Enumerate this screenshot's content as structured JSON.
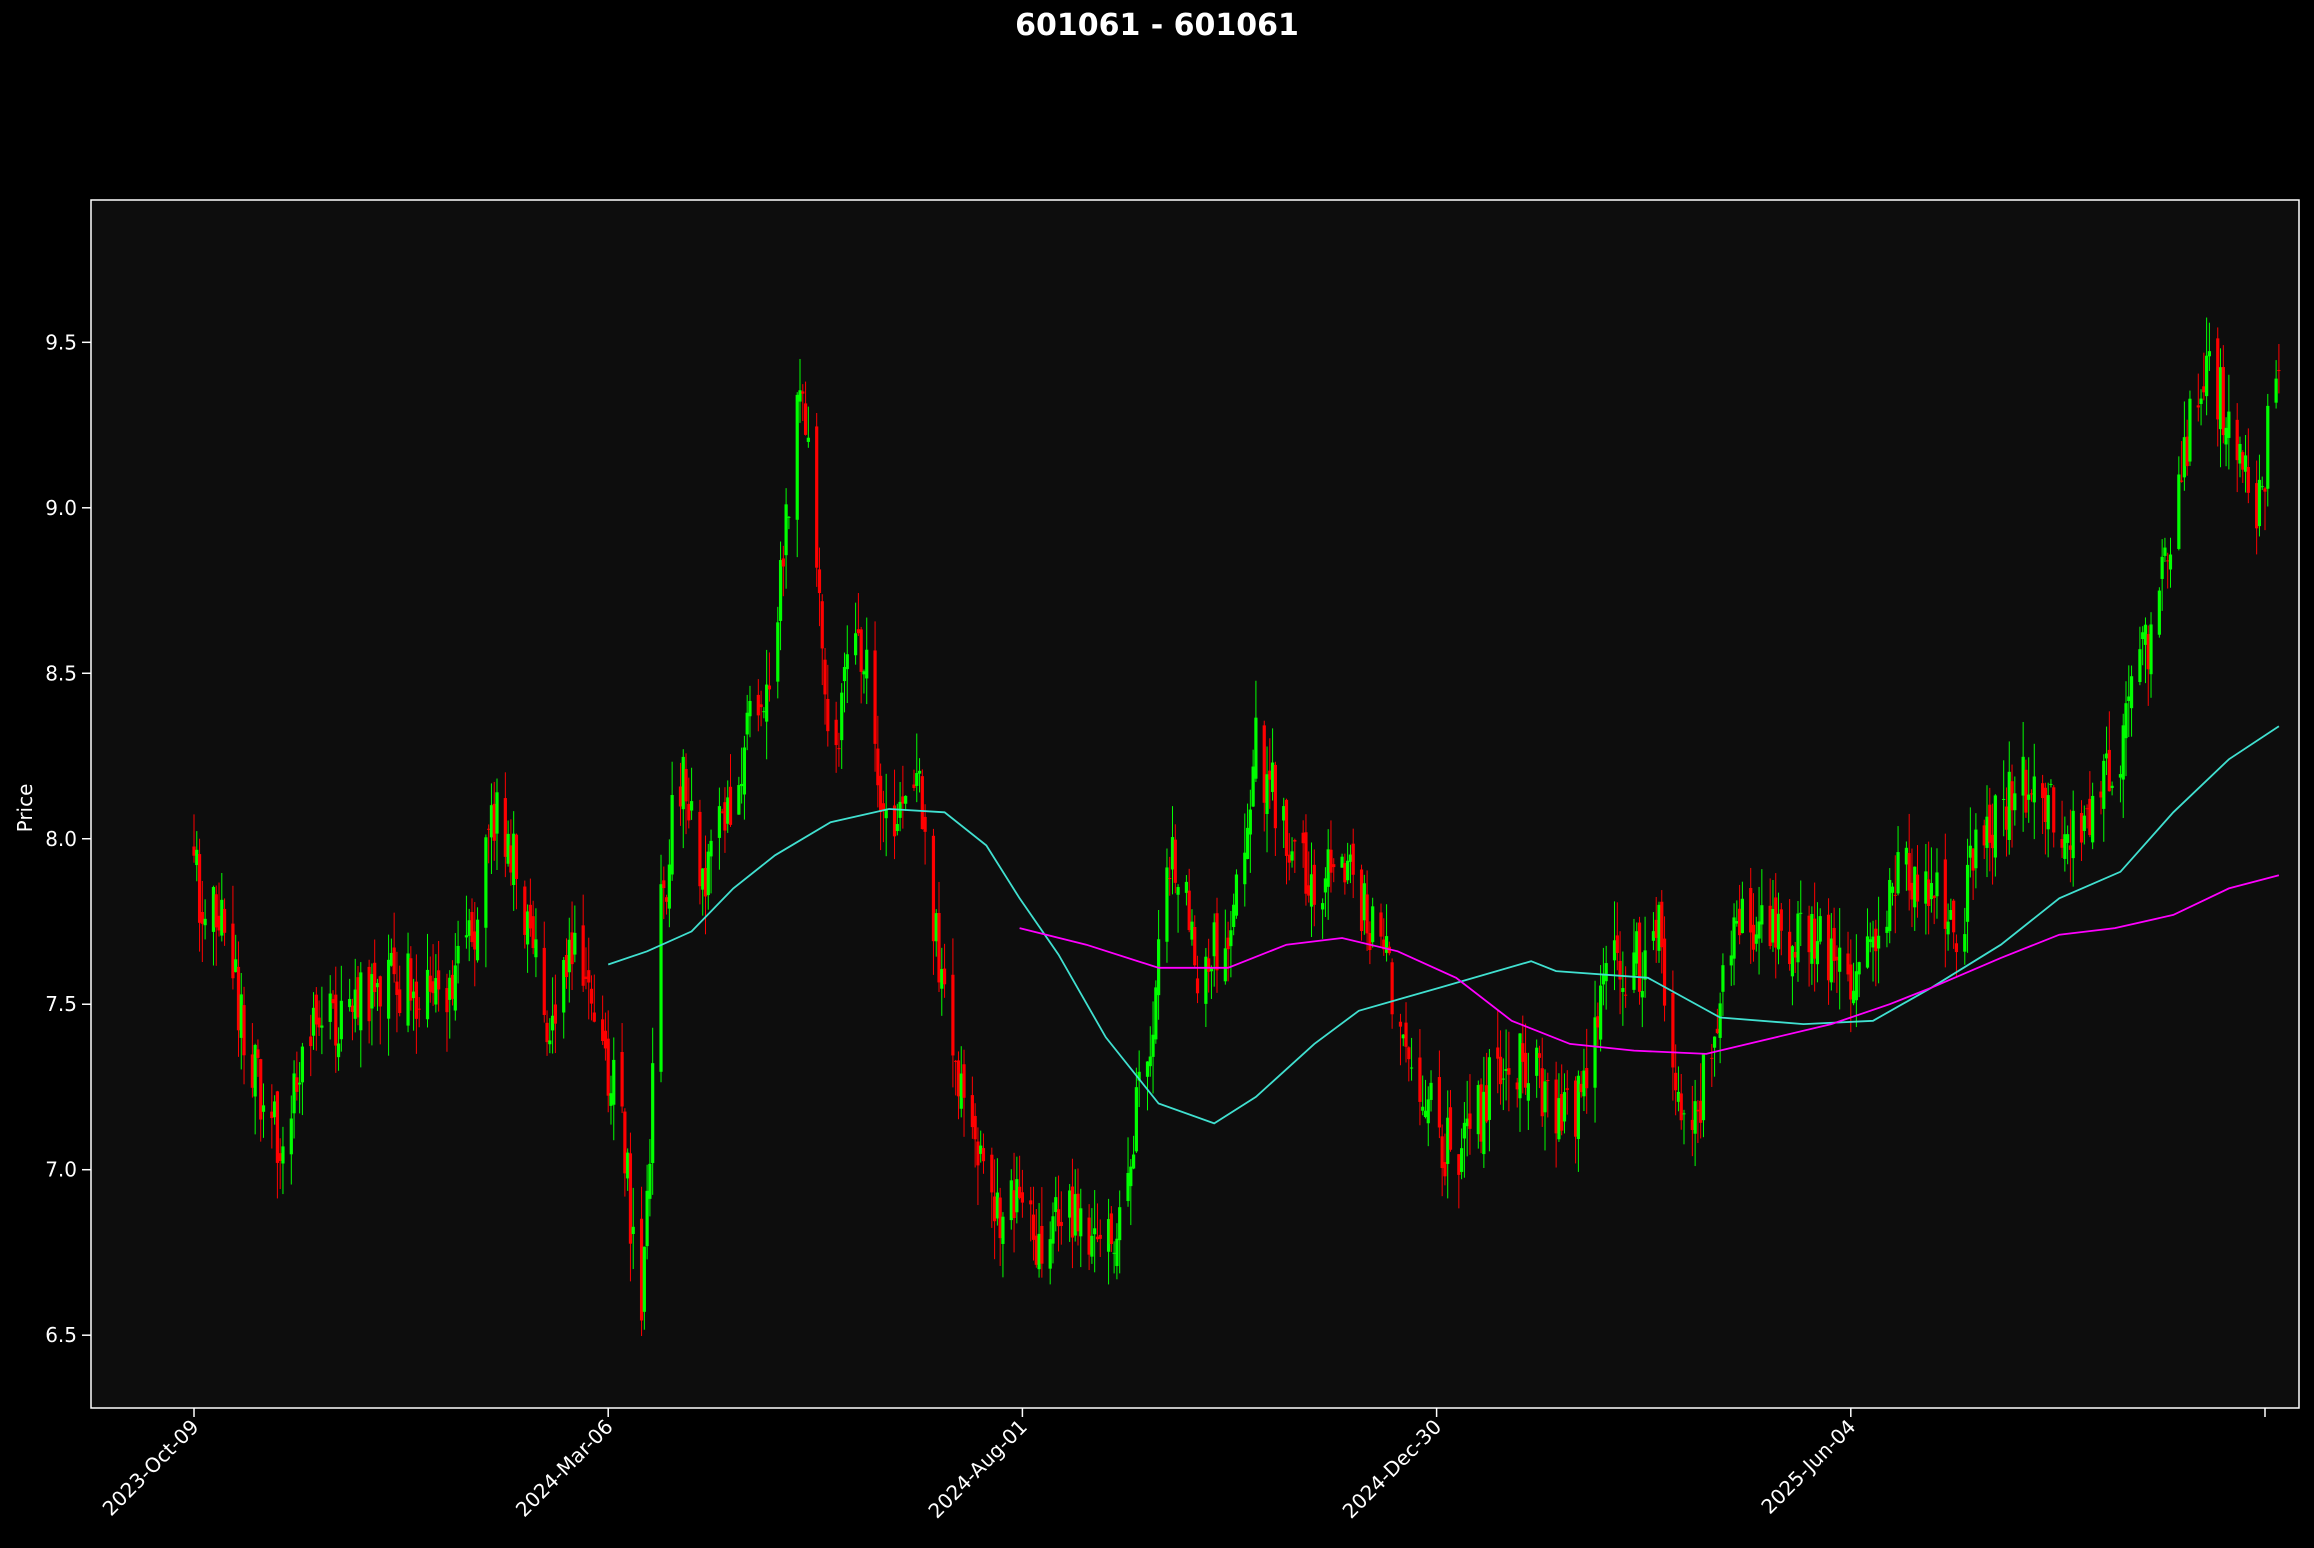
{
  "chart_data": {
    "type": "candlestick",
    "title": "601061 - 601061",
    "ylabel": "Price",
    "xlabel": "",
    "ylim": [
      6.28,
      9.93
    ],
    "yticks": [
      6.5,
      7.0,
      7.5,
      8.0,
      8.5,
      9.0,
      9.5
    ],
    "xticks": [
      "2023-Oct-09",
      "2024-Mar-06",
      "2024-Aug-01",
      "2024-Dec-30",
      "2025-Jun-04",
      ""
    ],
    "grid": false,
    "colors": {
      "background": "#000000",
      "plot_bg": "#0d0d0d",
      "up": "#00ff00",
      "down": "#ff0000",
      "ma_short": "#40e0d0",
      "ma_long": "#ff00ff"
    },
    "price_path": [
      [
        "2023-10-09",
        7.88
      ],
      [
        "2023-10-20",
        7.7
      ],
      [
        "2023-11-02",
        7.2
      ],
      [
        "2023-11-10",
        7.1
      ],
      [
        "2023-11-20",
        7.4
      ],
      [
        "2023-12-05",
        7.5
      ],
      [
        "2023-12-20",
        7.58
      ],
      [
        "2024-01-05",
        7.5
      ],
      [
        "2024-01-15",
        7.6
      ],
      [
        "2024-01-25",
        8.1
      ],
      [
        "2024-02-05",
        7.8
      ],
      [
        "2024-02-15",
        7.4
      ],
      [
        "2024-02-22",
        7.7
      ],
      [
        "2024-03-01",
        7.4
      ],
      [
        "2024-03-10",
        7.2
      ],
      [
        "2024-03-18",
        6.55
      ],
      [
        "2024-03-25",
        7.8
      ],
      [
        "2024-04-01",
        8.2
      ],
      [
        "2024-04-08",
        7.9
      ],
      [
        "2024-04-15",
        8.0
      ],
      [
        "2024-04-25",
        8.3
      ],
      [
        "2024-05-05",
        8.6
      ],
      [
        "2024-05-15",
        9.4
      ],
      [
        "2024-05-25",
        8.3
      ],
      [
        "2024-06-05",
        8.6
      ],
      [
        "2024-06-15",
        8.0
      ],
      [
        "2024-06-25",
        8.2
      ],
      [
        "2024-07-05",
        7.5
      ],
      [
        "2024-07-15",
        7.1
      ],
      [
        "2024-07-25",
        6.85
      ],
      [
        "2024-08-01",
        6.95
      ],
      [
        "2024-08-08",
        6.75
      ],
      [
        "2024-08-15",
        6.85
      ],
      [
        "2024-08-25",
        6.8
      ],
      [
        "2024-09-05",
        6.85
      ],
      [
        "2024-09-15",
        7.3
      ],
      [
        "2024-09-25",
        8.0
      ],
      [
        "2024-10-05",
        7.6
      ],
      [
        "2024-10-15",
        7.7
      ],
      [
        "2024-10-25",
        8.3
      ],
      [
        "2024-11-05",
        8.0
      ],
      [
        "2024-11-15",
        7.85
      ],
      [
        "2024-11-25",
        7.9
      ],
      [
        "2024-12-05",
        7.75
      ],
      [
        "2024-12-15",
        7.5
      ],
      [
        "2024-12-30",
        7.1
      ],
      [
        "2025-01-08",
        7.05
      ],
      [
        "2025-01-18",
        7.25
      ],
      [
        "2025-01-28",
        7.35
      ],
      [
        "2025-02-07",
        7.2
      ],
      [
        "2025-02-17",
        7.15
      ],
      [
        "2025-02-27",
        7.6
      ],
      [
        "2025-03-09",
        7.6
      ],
      [
        "2025-03-19",
        7.7
      ],
      [
        "2025-03-29",
        7.0
      ],
      [
        "2025-04-05",
        7.35
      ],
      [
        "2025-04-15",
        7.7
      ],
      [
        "2025-04-25",
        7.75
      ],
      [
        "2025-05-05",
        7.7
      ],
      [
        "2025-05-15",
        7.7
      ],
      [
        "2025-05-25",
        7.55
      ],
      [
        "2025-06-04",
        7.7
      ],
      [
        "2025-06-14",
        7.95
      ],
      [
        "2025-06-24",
        7.85
      ],
      [
        "2025-07-04",
        7.7
      ],
      [
        "2025-07-14",
        8.05
      ],
      [
        "2025-07-24",
        8.15
      ],
      [
        "2025-08-03",
        8.2
      ],
      [
        "2025-08-13",
        8.0
      ],
      [
        "2025-08-23",
        8.1
      ],
      [
        "2025-09-02",
        8.3
      ],
      [
        "2025-09-12",
        8.65
      ],
      [
        "2025-09-22",
        9.1
      ],
      [
        "2025-10-02",
        9.45
      ],
      [
        "2025-10-12",
        9.2
      ],
      [
        "2025-10-20",
        8.95
      ],
      [
        "2025-10-28",
        9.45
      ]
    ],
    "series": [
      {
        "values": [
          [
            "2024-03-06",
            7.62
          ],
          [
            "2024-03-20",
            7.66
          ],
          [
            "2024-04-05",
            7.72
          ],
          [
            "2024-04-20",
            7.85
          ],
          [
            "2024-05-05",
            7.95
          ],
          [
            "2024-05-25",
            8.05
          ],
          [
            "2024-06-15",
            8.09
          ],
          [
            "2024-07-05",
            8.08
          ],
          [
            "2024-07-20",
            7.98
          ],
          [
            "2024-08-01",
            7.82
          ],
          [
            "2024-08-15",
            7.65
          ],
          [
            "2024-09-01",
            7.4
          ],
          [
            "2024-09-20",
            7.2
          ],
          [
            "2024-10-10",
            7.14
          ],
          [
            "2024-10-25",
            7.22
          ],
          [
            "2024-11-15",
            7.38
          ],
          [
            "2024-12-01",
            7.48
          ],
          [
            "2024-12-30",
            7.55
          ],
          [
            "2025-02-01",
            7.63
          ],
          [
            "2025-02-10",
            7.6
          ],
          [
            "2025-03-15",
            7.58
          ],
          [
            "2025-04-10",
            7.46
          ],
          [
            "2025-05-10",
            7.44
          ],
          [
            "2025-06-04",
            7.45
          ],
          [
            "2025-06-25",
            7.55
          ],
          [
            "2025-07-20",
            7.68
          ],
          [
            "2025-08-10",
            7.82
          ],
          [
            "2025-09-01",
            7.9
          ],
          [
            "2025-09-20",
            8.08
          ],
          [
            "2025-10-10",
            8.24
          ],
          [
            "2025-10-28",
            8.34
          ]
        ]
      },
      {
        "values": [
          [
            "2024-08-01",
            7.73
          ],
          [
            "2024-08-25",
            7.68
          ],
          [
            "2024-09-20",
            7.61
          ],
          [
            "2024-10-15",
            7.61
          ],
          [
            "2024-11-05",
            7.68
          ],
          [
            "2024-11-25",
            7.7
          ],
          [
            "2024-12-15",
            7.66
          ],
          [
            "2025-01-05",
            7.58
          ],
          [
            "2025-01-25",
            7.45
          ],
          [
            "2025-02-15",
            7.38
          ],
          [
            "2025-03-10",
            7.36
          ],
          [
            "2025-04-05",
            7.35
          ],
          [
            "2025-04-25",
            7.39
          ],
          [
            "2025-05-20",
            7.44
          ],
          [
            "2025-06-10",
            7.5
          ],
          [
            "2025-06-25",
            7.55
          ],
          [
            "2025-07-20",
            7.64
          ],
          [
            "2025-08-10",
            7.71
          ],
          [
            "2025-08-30",
            7.73
          ],
          [
            "2025-09-20",
            7.77
          ],
          [
            "2025-10-10",
            7.85
          ],
          [
            "2025-10-28",
            7.89
          ]
        ]
      }
    ]
  }
}
